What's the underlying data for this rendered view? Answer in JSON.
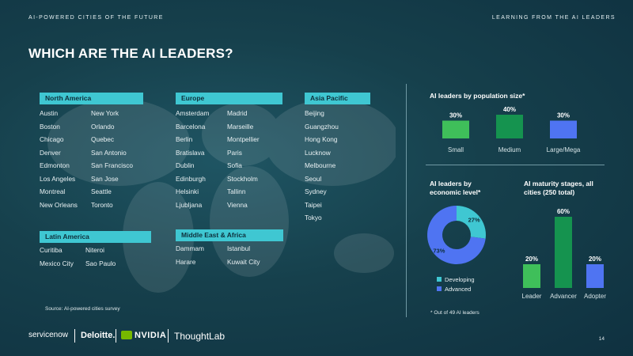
{
  "header": {
    "left": "AI-POWERED CITIES OF THE FUTURE",
    "right": "LEARNING FROM THE AI LEADERS",
    "title": "WHICH ARE THE AI LEADERS?"
  },
  "regions": {
    "north_america": {
      "label": "North America",
      "col1": [
        "Austin",
        "Boston",
        "Chicago",
        "Denver",
        "Edmonton",
        "Los Angeles",
        "Montreal",
        "New Orleans"
      ],
      "col2": [
        "New York",
        "Orlando",
        "Quebec",
        "San Antonio",
        "San Francisco",
        "San Jose",
        "Seattle",
        "Toronto"
      ]
    },
    "europe": {
      "label": "Europe",
      "col1": [
        "Amsterdam",
        "Barcelona",
        "Berlin",
        "Bratislava",
        "Dublin",
        "Edinburgh",
        "Helsinki",
        "Ljubljana"
      ],
      "col2": [
        "Madrid",
        "Marseille",
        "Montpellier",
        "Paris",
        "Sofia",
        "Stockholm",
        "Tallinn",
        "Vienna"
      ]
    },
    "asia_pacific": {
      "label": "Asia Pacific",
      "col1": [
        "Beijing",
        "Guangzhou",
        "Hong Kong",
        "Lucknow",
        "Melbourne",
        "Seoul",
        "Sydney",
        "Taipei",
        "Tokyo"
      ]
    },
    "latin_america": {
      "label": "Latin America",
      "col1": [
        "Curitiba",
        "Mexico City"
      ],
      "col2": [
        "Niteroi",
        "Sao Paulo"
      ]
    },
    "middle_east_africa": {
      "label": "Middle East & Africa",
      "col1": [
        "Dammam",
        "Harare"
      ],
      "col2": [
        "Istanbul",
        "Kuwait City"
      ]
    }
  },
  "source": "Source: AI-powered cities survey",
  "footnote": "* Out of 49 AI leaders",
  "page_number": "14",
  "logos": [
    "servicenow",
    "Deloitte.",
    "NVIDIA",
    "ThoughtLab"
  ],
  "colors": {
    "teal": "#3fc7d2",
    "light_green": "#3fbf5a",
    "dark_green": "#15934f",
    "blue": "#4f74f2",
    "cyan": "#3fc7d2"
  },
  "chart_data": [
    {
      "type": "bar",
      "title": "AI leaders by population size*",
      "categories": [
        "Small",
        "Medium",
        "Large/Mega"
      ],
      "values": [
        30,
        40,
        30
      ],
      "value_labels": [
        "30%",
        "40%",
        "30%"
      ],
      "bar_colors": [
        "#3fbf5a",
        "#15934f",
        "#4f74f2"
      ],
      "ylim": [
        0,
        40
      ],
      "grid": false
    },
    {
      "type": "pie",
      "title": "AI leaders by economic level*",
      "labels": [
        "Developing",
        "Advanced"
      ],
      "values": [
        27,
        73
      ],
      "value_labels": [
        "27%",
        "73%"
      ],
      "colors": [
        "#3fc7d2",
        "#4f74f2"
      ],
      "donut": true,
      "legend": "bottom"
    },
    {
      "type": "bar",
      "title": "AI maturity stages, all cities (250 total)",
      "categories": [
        "Leader",
        "Advancer",
        "Adopter"
      ],
      "values": [
        20,
        60,
        20
      ],
      "value_labels": [
        "20%",
        "60%",
        "20%"
      ],
      "bar_colors": [
        "#3fbf5a",
        "#15934f",
        "#4f74f2"
      ],
      "ylim": [
        0,
        60
      ],
      "grid": false
    }
  ]
}
